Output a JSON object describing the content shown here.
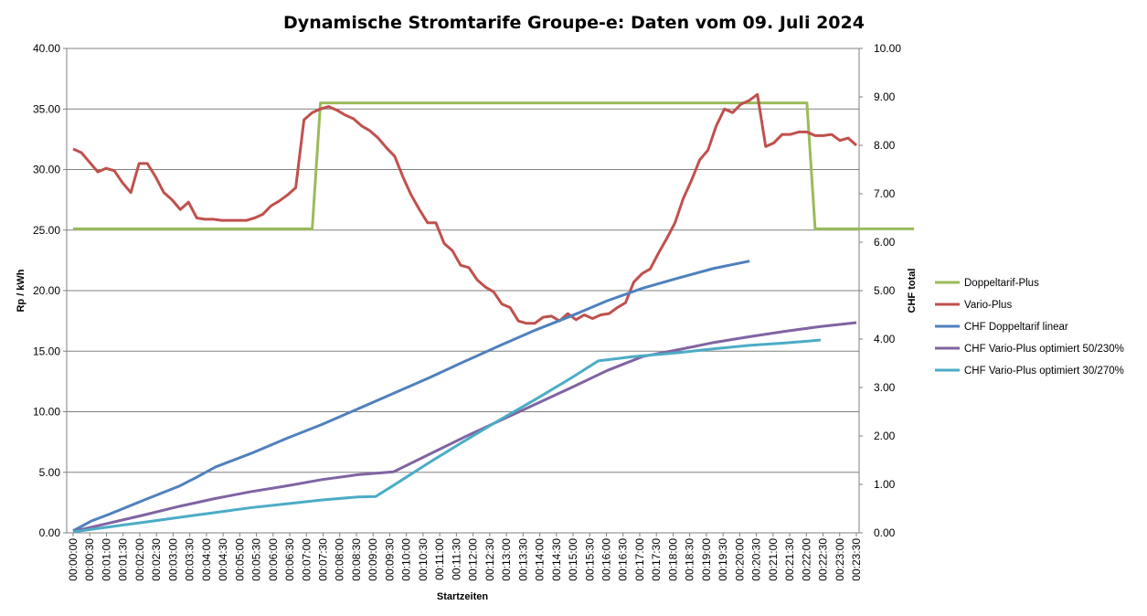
{
  "chart_data": {
    "type": "line",
    "title": "Dynamische Stromtarife Groupe-e: Daten vom 09. Juli 2024",
    "xlabel": "Startzeiten",
    "ylabel_left": "Rp / kWh",
    "ylabel_right": "CHF total",
    "ylim_left": [
      0,
      40
    ],
    "ylim_right": [
      0,
      10
    ],
    "left_ticks": [
      "0.00",
      "5.00",
      "10.00",
      "15.00",
      "20.00",
      "25.00",
      "30.00",
      "35.00",
      "40.00"
    ],
    "right_ticks": [
      "0.00",
      "1.00",
      "2.00",
      "3.00",
      "4.00",
      "5.00",
      "6.00",
      "7.00",
      "8.00",
      "9.00",
      "10.00"
    ],
    "categories": [
      "00:00:00",
      "00:00:30",
      "00:01:00",
      "00:01:30",
      "00:02:00",
      "00:02:30",
      "00:03:00",
      "00:03:30",
      "00:04:00",
      "00:04:30",
      "00:05:00",
      "00:05:30",
      "00:06:00",
      "00:06:30",
      "00:07:00",
      "00:07:30",
      "00:08:00",
      "00:08:30",
      "00:09:00",
      "00:09:30",
      "00:10:00",
      "00:10:30",
      "00:11:00",
      "00:11:30",
      "00:12:00",
      "00:12:30",
      "00:13:00",
      "00:13:30",
      "00:14:00",
      "00:14:30",
      "00:15:00",
      "00:15:30",
      "00:16:00",
      "00:16:30",
      "00:17:00",
      "00:17:30",
      "00:18:00",
      "00:18:30",
      "00:19:00",
      "00:19:30",
      "00:20:00",
      "00:20:30",
      "00:21:00",
      "00:21:30",
      "00:22:00",
      "00:22:30",
      "00:23:00",
      "00:23:30"
    ],
    "legend_position": "right",
    "series": [
      {
        "name": "Doppeltarif-Plus",
        "axis": "left",
        "color": "#9bbb59",
        "points": [
          [
            0,
            25.1
          ],
          [
            29,
            25.1
          ],
          [
            30,
            35.5
          ],
          [
            89,
            35.5
          ],
          [
            90,
            25.1
          ],
          [
            102,
            25.1
          ]
        ]
      },
      {
        "name": "Vario-Plus",
        "axis": "left",
        "color": "#c0504d",
        "points": [
          [
            0,
            31.7
          ],
          [
            1,
            31.4
          ],
          [
            2,
            30.6
          ],
          [
            3,
            29.8
          ],
          [
            4,
            30.1
          ],
          [
            5,
            29.9
          ],
          [
            6,
            28.9
          ],
          [
            7,
            28.1
          ],
          [
            8,
            30.5
          ],
          [
            9,
            30.5
          ],
          [
            10,
            29.4
          ],
          [
            11,
            28.1
          ],
          [
            12,
            27.5
          ],
          [
            13,
            26.7
          ],
          [
            14,
            27.3
          ],
          [
            15,
            26.0
          ],
          [
            16,
            25.9
          ],
          [
            17,
            25.9
          ],
          [
            18,
            25.8
          ],
          [
            19,
            25.8
          ],
          [
            20,
            25.8
          ],
          [
            21,
            25.8
          ],
          [
            22,
            26.0
          ],
          [
            23,
            26.3
          ],
          [
            24,
            27.0
          ],
          [
            25,
            27.4
          ],
          [
            26,
            27.9
          ],
          [
            27,
            28.5
          ],
          [
            28,
            34.1
          ],
          [
            29,
            34.7
          ],
          [
            30,
            35.0
          ],
          [
            31,
            35.2
          ],
          [
            32,
            34.9
          ],
          [
            33,
            34.5
          ],
          [
            34,
            34.2
          ],
          [
            35,
            33.6
          ],
          [
            36,
            33.2
          ],
          [
            37,
            32.6
          ],
          [
            38,
            31.8
          ],
          [
            39,
            31.1
          ],
          [
            40,
            29.4
          ],
          [
            41,
            27.9
          ],
          [
            42,
            26.7
          ],
          [
            43,
            25.6
          ],
          [
            44,
            25.6
          ],
          [
            45,
            23.9
          ],
          [
            46,
            23.3
          ],
          [
            47,
            22.1
          ],
          [
            48,
            21.9
          ],
          [
            49,
            20.9
          ],
          [
            50,
            20.3
          ],
          [
            51,
            19.9
          ],
          [
            52,
            18.9
          ],
          [
            53,
            18.6
          ],
          [
            54,
            17.5
          ],
          [
            55,
            17.3
          ],
          [
            56,
            17.3
          ],
          [
            57,
            17.8
          ],
          [
            58,
            17.9
          ],
          [
            59,
            17.5
          ],
          [
            60,
            18.1
          ],
          [
            61,
            17.6
          ],
          [
            62,
            18.0
          ],
          [
            63,
            17.7
          ],
          [
            64,
            18.0
          ],
          [
            65,
            18.1
          ],
          [
            66,
            18.6
          ],
          [
            67,
            19.0
          ],
          [
            68,
            20.7
          ],
          [
            69,
            21.4
          ],
          [
            70,
            21.8
          ],
          [
            71,
            23.1
          ],
          [
            72,
            24.3
          ],
          [
            73,
            25.6
          ],
          [
            74,
            27.6
          ],
          [
            75,
            29.1
          ],
          [
            76,
            30.8
          ],
          [
            77,
            31.6
          ],
          [
            78,
            33.6
          ],
          [
            79,
            35.0
          ],
          [
            80,
            34.7
          ],
          [
            81,
            35.4
          ],
          [
            82,
            35.7
          ],
          [
            83,
            36.2
          ],
          [
            84,
            31.9
          ],
          [
            85,
            32.2
          ],
          [
            86,
            32.9
          ],
          [
            87,
            32.9
          ],
          [
            88,
            33.1
          ],
          [
            89,
            33.1
          ],
          [
            90,
            32.8
          ],
          [
            91,
            32.8
          ],
          [
            92,
            32.9
          ],
          [
            93,
            32.4
          ],
          [
            94,
            32.6
          ],
          [
            95,
            32.0
          ]
        ]
      },
      {
        "name": "CHF Doppeltarif linear",
        "axis": "right",
        "color": "#4f81bd",
        "points": [
          [
            0,
            0.04
          ],
          [
            4,
            0.24
          ],
          [
            8,
            0.38
          ],
          [
            16,
            0.68
          ],
          [
            24,
            0.97
          ],
          [
            28,
            1.16
          ],
          [
            32,
            1.36
          ],
          [
            40,
            1.64
          ],
          [
            48,
            1.95
          ],
          [
            56,
            2.24
          ],
          [
            64,
            2.56
          ],
          [
            72,
            2.88
          ],
          [
            80,
            3.2
          ],
          [
            88,
            3.54
          ],
          [
            96,
            3.87
          ],
          [
            104,
            4.19
          ],
          [
            112,
            4.48
          ],
          [
            120,
            4.79
          ],
          [
            128,
            5.05
          ],
          [
            136,
            5.26
          ],
          [
            144,
            5.46
          ],
          [
            152,
            5.61
          ]
        ]
      },
      {
        "name": "CHF Vario-Plus optimiert  50/230%",
        "axis": "right",
        "color": "#8064a2",
        "points": [
          [
            0,
            0.03
          ],
          [
            8,
            0.2
          ],
          [
            16,
            0.37
          ],
          [
            24,
            0.55
          ],
          [
            32,
            0.71
          ],
          [
            40,
            0.85
          ],
          [
            48,
            0.97
          ],
          [
            56,
            1.1
          ],
          [
            64,
            1.2
          ],
          [
            72,
            1.26
          ],
          [
            80,
            1.62
          ],
          [
            88,
            1.98
          ],
          [
            96,
            2.32
          ],
          [
            104,
            2.66
          ],
          [
            112,
            3.0
          ],
          [
            120,
            3.35
          ],
          [
            128,
            3.64
          ],
          [
            136,
            3.78
          ],
          [
            144,
            3.93
          ],
          [
            152,
            4.05
          ],
          [
            160,
            4.16
          ],
          [
            168,
            4.26
          ],
          [
            176,
            4.34
          ]
        ]
      },
      {
        "name": "CHF Vario-Plus optimiert  30/270%",
        "axis": "right",
        "color": "#4bacc6",
        "points": [
          [
            0,
            0.02
          ],
          [
            8,
            0.12
          ],
          [
            16,
            0.22
          ],
          [
            24,
            0.32
          ],
          [
            32,
            0.42
          ],
          [
            40,
            0.52
          ],
          [
            48,
            0.6
          ],
          [
            56,
            0.68
          ],
          [
            64,
            0.74
          ],
          [
            68,
            0.75
          ],
          [
            72,
            0.98
          ],
          [
            80,
            1.45
          ],
          [
            88,
            1.9
          ],
          [
            96,
            2.34
          ],
          [
            104,
            2.76
          ],
          [
            112,
            3.2
          ],
          [
            118,
            3.55
          ],
          [
            126,
            3.64
          ],
          [
            136,
            3.72
          ],
          [
            144,
            3.8
          ],
          [
            152,
            3.87
          ],
          [
            160,
            3.92
          ],
          [
            168,
            3.98
          ]
        ]
      }
    ]
  }
}
